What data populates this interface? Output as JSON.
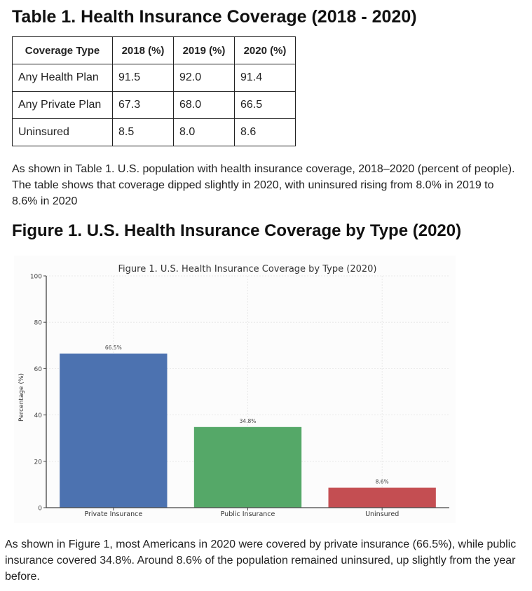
{
  "table_section": {
    "title": "Table 1. Health Insurance Coverage (2018 - 2020)",
    "headers": [
      "Coverage Type",
      "2018 (%)",
      "2019 (%)",
      "2020 (%)"
    ],
    "rows": [
      [
        "Any Health Plan",
        "91.5",
        "92.0",
        "91.4"
      ],
      [
        "Any Private Plan",
        "67.3",
        "68.0",
        "66.5"
      ],
      [
        "Uninsured",
        "8.5",
        "8.0",
        "8.6"
      ]
    ],
    "caption": "As shown in Table 1. U.S. population with health insurance coverage, 2018–2020 (percent of people). The table shows that coverage dipped slightly in 2020, with uninsured rising from 8.0% in 2019 to 8.6% in 2020"
  },
  "figure_section": {
    "title": "Figure 1. U.S. Health Insurance Coverage by Type (2020)",
    "caption": "As shown in Figure 1, most Americans in 2020 were covered by private insurance (66.5%), while public insurance covered 34.8%. Around 8.6% of the population remained uninsured, up slightly from the year before."
  },
  "chart_data": {
    "type": "bar",
    "title": "Figure 1. U.S. Health Insurance Coverage by Type (2020)",
    "xlabel": "",
    "ylabel": "Percentage (%)",
    "categories": [
      "Private Insurance",
      "Public Insurance",
      "Uninsured"
    ],
    "values": [
      66.5,
      34.8,
      8.6
    ],
    "data_labels": [
      "66.5%",
      "34.8%",
      "8.6%"
    ],
    "colors": [
      "#4c72b0",
      "#55a868",
      "#c44e52"
    ],
    "ylim": [
      0,
      100
    ],
    "yticks": [
      0,
      20,
      40,
      60,
      80,
      100
    ],
    "grid": true,
    "legend": "none"
  }
}
